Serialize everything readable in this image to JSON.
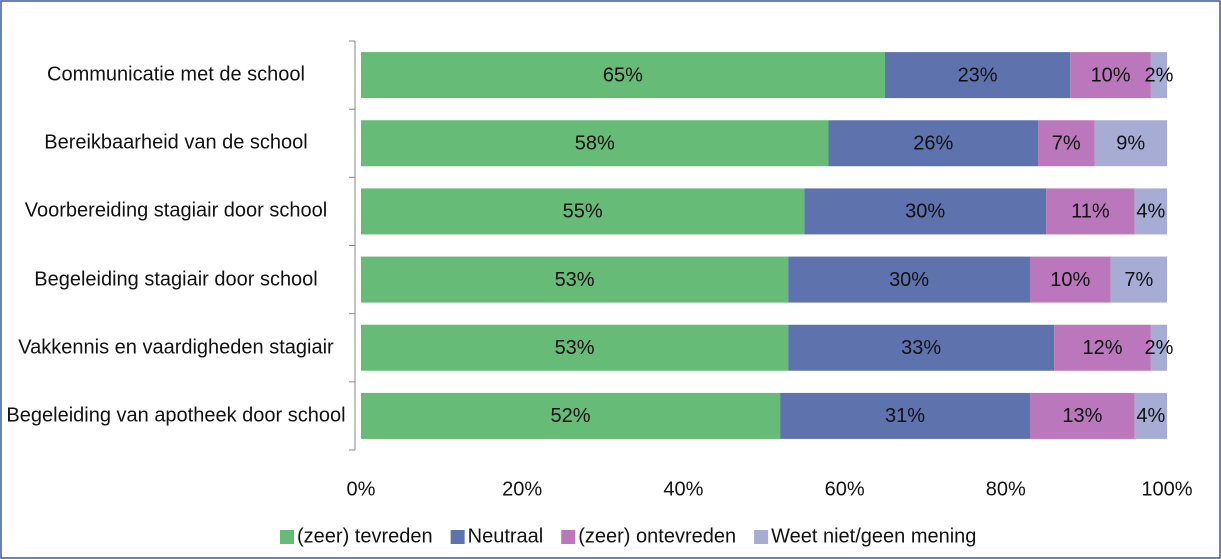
{
  "chart_data": {
    "type": "stacked-bar-horizontal",
    "categories": [
      "Communicatie met de school",
      "Bereikbaarheid van de school",
      "Voorbereiding stagiair door school",
      "Begeleiding stagiair door school",
      "Vakkennis en vaardigheden stagiair",
      "Begeleiding van apotheek door school"
    ],
    "series": [
      {
        "name": "(zeer) tevreden",
        "color": "#66bb77",
        "values": [
          65,
          58,
          55,
          53,
          53,
          52
        ],
        "value_labels": [
          "65%",
          "58%",
          "55%",
          "53%",
          "53%",
          "52%"
        ]
      },
      {
        "name": "Neutraal",
        "color": "#5e72ae",
        "values": [
          23,
          26,
          30,
          30,
          33,
          31
        ],
        "value_labels": [
          "23%",
          "26%",
          "30%",
          "30%",
          "33%",
          "31%"
        ]
      },
      {
        "name": "(zeer) ontevreden",
        "color": "#bb77bb",
        "values": [
          10,
          7,
          11,
          10,
          12,
          13
        ],
        "value_labels": [
          "10%",
          "7%",
          "11%",
          "10%",
          "12%",
          "13%"
        ]
      },
      {
        "name": "Weet niet/geen mening",
        "color": "#a6acd4",
        "values": [
          2,
          9,
          4,
          7,
          2,
          4
        ],
        "value_labels": [
          "2%",
          "9%",
          "4%",
          "7%",
          "2%",
          "4%"
        ]
      }
    ],
    "xlim": [
      0,
      100
    ],
    "xticks": [
      {
        "value": 0,
        "label": "0%"
      },
      {
        "value": 20,
        "label": "20%"
      },
      {
        "value": 40,
        "label": "40%"
      },
      {
        "value": 60,
        "label": "60%"
      },
      {
        "value": 80,
        "label": "80%"
      },
      {
        "value": 100,
        "label": "100%"
      }
    ],
    "legend": "bottom",
    "grid": false
  }
}
